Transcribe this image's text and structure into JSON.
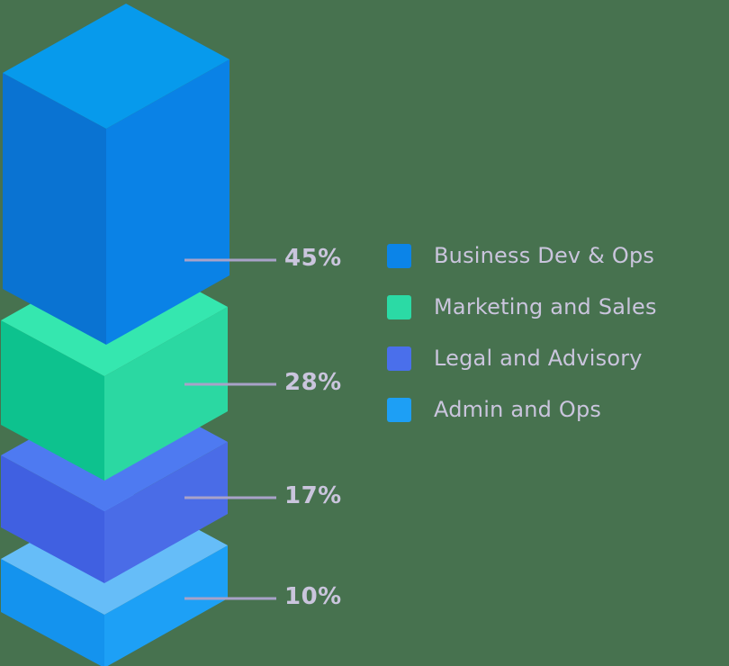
{
  "background_color": "#47724f",
  "text_color": "#cac5dd",
  "callout": {
    "line_color": "#a8a2c8"
  },
  "chart_data": {
    "type": "bar",
    "subtype": "isometric-3d-stacked",
    "title": "",
    "unit": "%",
    "total": 100,
    "legend_position": "right",
    "categories": [
      "Business Dev & Ops",
      "Marketing and Sales",
      "Legal and Advisory",
      "Admin and Ops"
    ],
    "values": [
      45,
      28,
      17,
      10
    ],
    "segments": [
      {
        "label": "Business Dev & Ops",
        "value": 45,
        "value_label": "45%",
        "legend_color": "#0b84e8",
        "faces": {
          "top": "#079aec",
          "right": "#0a82e6",
          "left": "#0a73d2"
        }
      },
      {
        "label": "Marketing and Sales",
        "value": 28,
        "value_label": "28%",
        "legend_color": "#2bdaa5",
        "faces": {
          "top": "#35e7af",
          "right": "#2bd8a2",
          "left": "#0dc28e"
        }
      },
      {
        "label": "Legal and Advisory",
        "value": 17,
        "value_label": "17%",
        "legend_color": "#4a6feb",
        "faces": {
          "top": "#4e7af1",
          "right": "#4a6ce7",
          "left": "#4060e1"
        }
      },
      {
        "label": "Admin and Ops",
        "value": 10,
        "value_label": "10%",
        "legend_color": "#1d9ff5",
        "faces": {
          "top": "#66bdf8",
          "right": "#1da0f6",
          "left": "#1493ee"
        }
      }
    ]
  }
}
